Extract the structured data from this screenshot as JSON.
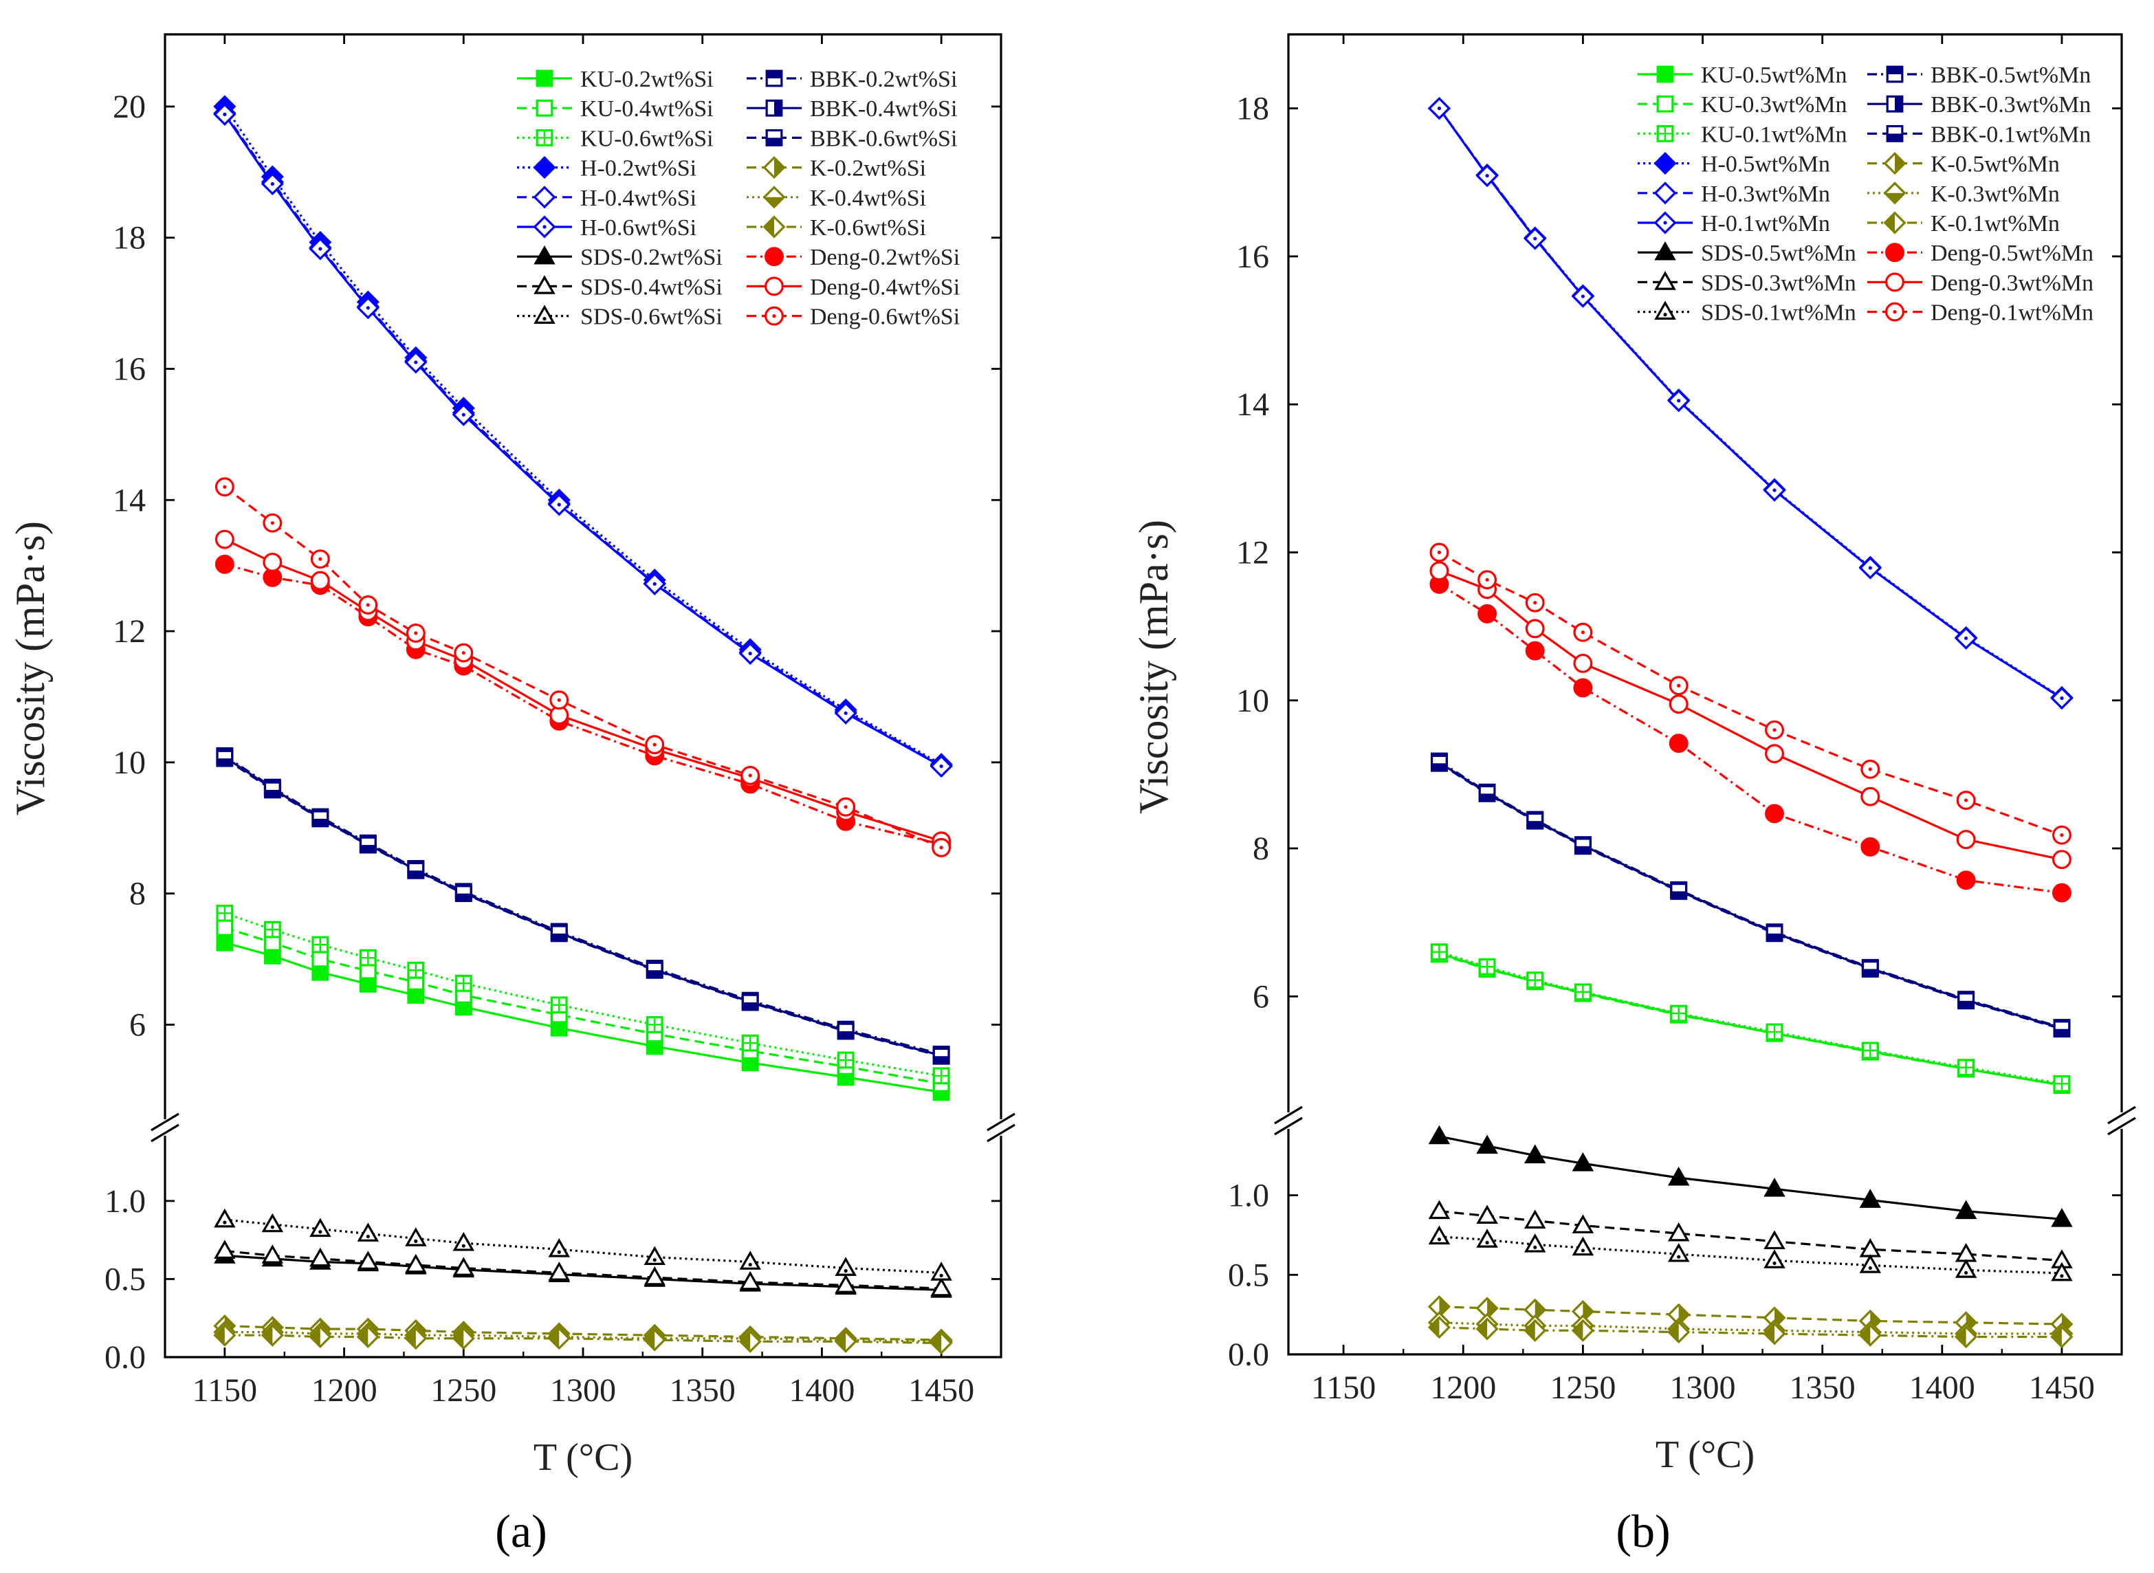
{
  "chart_data": [
    {
      "type": "line",
      "panel_label": "(a)",
      "xlabel": "T (°C)",
      "ylabel": "Viscosity (mPa·s)",
      "xlim": [
        1125,
        1475
      ],
      "ylim_lower": [
        0,
        1.4
      ],
      "ylim_upper": [
        4.6,
        21.1
      ],
      "axis_break": true,
      "grid": false,
      "legend_position": "top-right",
      "x_ticks": [
        "1150",
        "1200",
        "1250",
        "1300",
        "1350",
        "1400",
        "1450"
      ],
      "y_ticks_lower": [
        "0.0",
        "0.5",
        "1.0"
      ],
      "y_ticks_upper": [
        "6",
        "8",
        "10",
        "12",
        "14",
        "16",
        "18",
        "20"
      ],
      "x": [
        1150,
        1170,
        1190,
        1210,
        1230,
        1250,
        1290,
        1330,
        1370,
        1410,
        1450
      ],
      "series": [
        {
          "name": "KU-0.2wt%Si",
          "color": "#00ee00",
          "line": "solid",
          "marker": "square-filled",
          "values": [
            7.25,
            7.05,
            6.8,
            6.62,
            6.45,
            6.27,
            5.95,
            5.67,
            5.42,
            5.2,
            4.97
          ]
        },
        {
          "name": "KU-0.4wt%Si",
          "color": "#00ee00",
          "line": "dash",
          "marker": "square-open",
          "values": [
            7.48,
            7.25,
            7.0,
            6.82,
            6.65,
            6.45,
            6.15,
            5.86,
            5.6,
            5.36,
            5.1
          ]
        },
        {
          "name": "KU-0.6wt%Si",
          "color": "#00ee00",
          "line": "dot",
          "marker": "square-grid",
          "values": [
            7.7,
            7.45,
            7.22,
            7.02,
            6.83,
            6.63,
            6.3,
            6.0,
            5.72,
            5.46,
            5.22
          ]
        },
        {
          "name": "H-0.2wt%Si",
          "color": "#0000ff",
          "line": "dot",
          "marker": "diamond-filled",
          "values": [
            20.0,
            18.93,
            17.93,
            17.02,
            16.17,
            15.4,
            14.0,
            12.78,
            11.72,
            10.8,
            9.97
          ]
        },
        {
          "name": "H-0.4wt%Si",
          "color": "#0000ff",
          "line": "dash",
          "marker": "diamond-open",
          "values": [
            19.9,
            18.85,
            17.85,
            16.95,
            16.12,
            15.33,
            13.95,
            12.73,
            11.68,
            10.77,
            9.95
          ]
        },
        {
          "name": "H-0.6wt%Si",
          "color": "#0000ff",
          "line": "solid",
          "marker": "diamond-dot",
          "values": [
            19.88,
            18.82,
            17.83,
            16.93,
            16.1,
            15.3,
            13.93,
            12.72,
            11.66,
            10.75,
            9.94
          ]
        },
        {
          "name": "SDS-0.2wt%Si",
          "color": "#000000",
          "line": "solid",
          "marker": "triangle-filled",
          "values": [
            0.65,
            0.63,
            0.61,
            0.6,
            0.58,
            0.56,
            0.53,
            0.5,
            0.47,
            0.45,
            0.43
          ]
        },
        {
          "name": "SDS-0.4wt%Si",
          "color": "#000000",
          "line": "dash",
          "marker": "triangle-open",
          "values": [
            0.68,
            0.65,
            0.63,
            0.61,
            0.59,
            0.57,
            0.54,
            0.51,
            0.48,
            0.46,
            0.44
          ]
        },
        {
          "name": "SDS-0.6wt%Si",
          "color": "#000000",
          "line": "dot",
          "marker": "triangle-dot",
          "values": [
            0.88,
            0.85,
            0.82,
            0.79,
            0.76,
            0.73,
            0.69,
            0.64,
            0.61,
            0.57,
            0.54
          ]
        },
        {
          "name": "BBK-0.2wt%Si",
          "color": "#000080",
          "line": "dashdot",
          "marker": "square-top",
          "values": [
            10.1,
            9.62,
            9.17,
            8.77,
            8.38,
            8.03,
            7.42,
            6.86,
            6.37,
            5.93,
            5.55
          ]
        },
        {
          "name": "BBK-0.4wt%Si",
          "color": "#000080",
          "line": "solid",
          "marker": "square-right",
          "values": [
            10.08,
            9.6,
            9.15,
            8.75,
            8.36,
            8.01,
            7.4,
            6.84,
            6.35,
            5.91,
            5.53
          ]
        },
        {
          "name": "BBK-0.6wt%Si",
          "color": "#000080",
          "line": "dash",
          "marker": "square-bottom",
          "values": [
            10.06,
            9.58,
            9.14,
            8.74,
            8.35,
            8.0,
            7.39,
            6.83,
            6.34,
            5.9,
            5.52
          ]
        },
        {
          "name": "K-0.2wt%Si",
          "color": "#808000",
          "line": "dash",
          "marker": "diamond-right",
          "values": [
            0.2,
            0.19,
            0.18,
            0.18,
            0.17,
            0.16,
            0.15,
            0.14,
            0.13,
            0.12,
            0.11
          ]
        },
        {
          "name": "K-0.4wt%Si",
          "color": "#808000",
          "line": "dot",
          "marker": "diamond-bottom",
          "values": [
            0.16,
            0.16,
            0.15,
            0.15,
            0.14,
            0.14,
            0.13,
            0.12,
            0.12,
            0.11,
            0.1
          ]
        },
        {
          "name": "K-0.6wt%Si",
          "color": "#808000",
          "line": "dashdot",
          "marker": "diamond-left",
          "values": [
            0.14,
            0.14,
            0.13,
            0.13,
            0.12,
            0.12,
            0.12,
            0.11,
            0.1,
            0.1,
            0.09
          ]
        },
        {
          "name": "Deng-0.2wt%Si",
          "color": "#ff0000",
          "line": "dashdot",
          "marker": "circle-filled",
          "values": [
            13.02,
            12.82,
            12.7,
            12.22,
            11.72,
            11.47,
            10.63,
            10.1,
            9.67,
            9.1,
            8.75
          ]
        },
        {
          "name": "Deng-0.4wt%Si",
          "color": "#ff0000",
          "line": "solid",
          "marker": "circle-open",
          "values": [
            13.4,
            13.05,
            12.77,
            12.3,
            11.85,
            11.56,
            10.72,
            10.2,
            9.76,
            9.25,
            8.8
          ]
        },
        {
          "name": "Deng-0.6wt%Si",
          "color": "#ff0000",
          "line": "dash",
          "marker": "circle-dot",
          "values": [
            14.2,
            13.65,
            13.1,
            12.4,
            11.97,
            11.67,
            10.95,
            10.27,
            9.8,
            9.32,
            8.7
          ]
        }
      ]
    },
    {
      "type": "line",
      "panel_label": "(b)",
      "xlabel": "T (°C)",
      "ylabel": "Viscosity (mPa·s)",
      "xlim": [
        1127,
        1475
      ],
      "ylim_lower": [
        0,
        1.4
      ],
      "ylim_upper": [
        4.47,
        19.0
      ],
      "axis_break": true,
      "grid": false,
      "legend_position": "top-right",
      "x_ticks": [
        "1150",
        "1200",
        "1250",
        "1300",
        "1350",
        "1400",
        "1450"
      ],
      "y_ticks_lower": [
        "0.0",
        "0.5",
        "1.0"
      ],
      "y_ticks_upper": [
        "6",
        "8",
        "10",
        "12",
        "14",
        "16",
        "18"
      ],
      "x": [
        1190,
        1210,
        1230,
        1250,
        1290,
        1330,
        1370,
        1410,
        1450
      ],
      "series": [
        {
          "name": "KU-0.5wt%Mn",
          "color": "#00ee00",
          "line": "solid",
          "marker": "square-filled",
          "values": [
            6.58,
            6.38,
            6.2,
            6.05,
            5.76,
            5.5,
            5.26,
            5.02,
            4.8
          ]
        },
        {
          "name": "KU-0.3wt%Mn",
          "color": "#00ee00",
          "line": "dash",
          "marker": "square-open",
          "values": [
            6.57,
            6.37,
            6.2,
            6.04,
            5.75,
            5.5,
            5.25,
            5.02,
            4.8
          ]
        },
        {
          "name": "KU-0.1wt%Mn",
          "color": "#00ee00",
          "line": "dot",
          "marker": "square-grid",
          "values": [
            6.6,
            6.4,
            6.22,
            6.06,
            5.77,
            5.52,
            5.27,
            5.04,
            4.82
          ]
        },
        {
          "name": "H-0.5wt%Mn",
          "color": "#0000ff",
          "line": "dot",
          "marker": "diamond-filled",
          "values": [
            18.0,
            17.1,
            16.25,
            15.47,
            14.06,
            12.85,
            11.8,
            10.85,
            10.04
          ]
        },
        {
          "name": "H-0.3wt%Mn",
          "color": "#0000ff",
          "line": "dash",
          "marker": "diamond-open",
          "values": [
            18.0,
            17.1,
            16.25,
            15.46,
            14.05,
            12.84,
            11.79,
            10.84,
            10.03
          ]
        },
        {
          "name": "H-0.1wt%Mn",
          "color": "#0000ff",
          "line": "solid",
          "marker": "diamond-dot",
          "values": [
            18.0,
            17.09,
            16.24,
            15.46,
            14.05,
            12.84,
            11.79,
            10.84,
            10.03
          ]
        },
        {
          "name": "SDS-0.5wt%Mn",
          "color": "#000000",
          "line": "solid",
          "marker": "triangle-filled",
          "values": [
            1.37,
            1.31,
            1.25,
            1.2,
            1.11,
            1.04,
            0.97,
            0.9,
            0.85
          ]
        },
        {
          "name": "SDS-0.3wt%Mn",
          "color": "#000000",
          "line": "dash",
          "marker": "triangle-open",
          "values": [
            0.9,
            0.87,
            0.84,
            0.81,
            0.76,
            0.71,
            0.66,
            0.63,
            0.59
          ]
        },
        {
          "name": "SDS-0.1wt%Mn",
          "color": "#000000",
          "line": "dot",
          "marker": "triangle-dot",
          "values": [
            0.74,
            0.72,
            0.69,
            0.67,
            0.63,
            0.59,
            0.56,
            0.53,
            0.51
          ]
        },
        {
          "name": "BBK-0.5wt%Mn",
          "color": "#000080",
          "line": "dashdot",
          "marker": "square-top",
          "values": [
            9.18,
            8.76,
            8.39,
            8.05,
            7.44,
            6.87,
            6.39,
            5.96,
            5.58
          ]
        },
        {
          "name": "BBK-0.3wt%Mn",
          "color": "#000080",
          "line": "solid",
          "marker": "square-right",
          "values": [
            9.16,
            8.75,
            8.38,
            8.04,
            7.43,
            6.86,
            6.38,
            5.95,
            5.57
          ]
        },
        {
          "name": "BBK-0.1wt%Mn",
          "color": "#000080",
          "line": "dash",
          "marker": "square-bottom",
          "values": [
            9.15,
            8.74,
            8.37,
            8.03,
            7.42,
            6.85,
            6.37,
            5.94,
            5.56
          ]
        },
        {
          "name": "K-0.5wt%Mn",
          "color": "#808000",
          "line": "dash",
          "marker": "diamond-right",
          "values": [
            0.3,
            0.29,
            0.28,
            0.27,
            0.25,
            0.23,
            0.21,
            0.2,
            0.19
          ]
        },
        {
          "name": "K-0.3wt%Mn",
          "color": "#808000",
          "line": "dot",
          "marker": "diamond-bottom",
          "values": [
            0.2,
            0.19,
            0.18,
            0.18,
            0.16,
            0.15,
            0.14,
            0.13,
            0.13
          ]
        },
        {
          "name": "K-0.1wt%Mn",
          "color": "#808000",
          "line": "dashdot",
          "marker": "diamond-left",
          "values": [
            0.17,
            0.16,
            0.15,
            0.15,
            0.14,
            0.13,
            0.12,
            0.11,
            0.11
          ]
        },
        {
          "name": "Deng-0.5wt%Mn",
          "color": "#ff0000",
          "line": "dashdot",
          "marker": "circle-filled",
          "values": [
            11.57,
            11.17,
            10.67,
            10.17,
            9.42,
            8.47,
            8.02,
            7.57,
            7.4
          ]
        },
        {
          "name": "Deng-0.3wt%Mn",
          "color": "#ff0000",
          "line": "solid",
          "marker": "circle-open",
          "values": [
            11.75,
            11.5,
            10.97,
            10.5,
            9.95,
            9.28,
            8.7,
            8.12,
            7.85
          ]
        },
        {
          "name": "Deng-0.1wt%Mn",
          "color": "#ff0000",
          "line": "dash",
          "marker": "circle-dot",
          "values": [
            12.0,
            11.63,
            11.32,
            10.92,
            10.2,
            9.6,
            9.07,
            8.65,
            8.18
          ]
        }
      ]
    }
  ]
}
